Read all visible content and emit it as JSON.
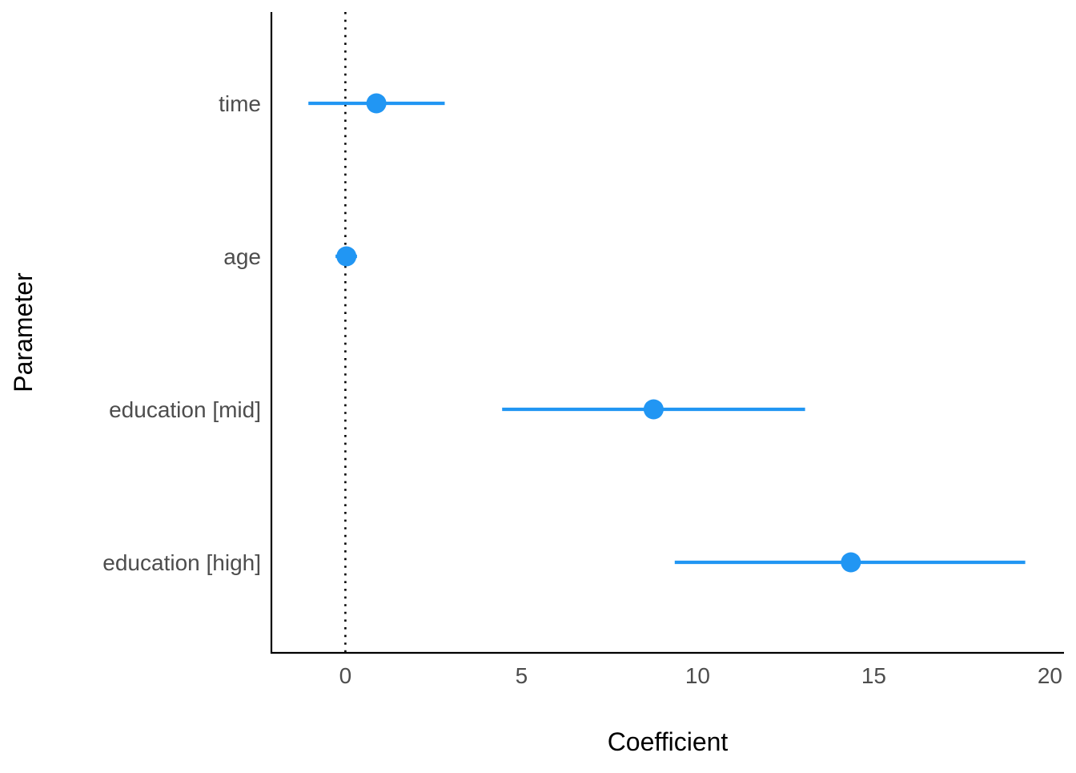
{
  "chart_data": {
    "type": "scatter",
    "subtype": "coefficient-plot",
    "title": "",
    "xlabel": "Coefficient",
    "ylabel": "Parameter",
    "xlim": [
      -2.1,
      20.4
    ],
    "x_ticks": [
      0,
      5,
      10,
      15,
      20
    ],
    "x_tick_labels": [
      "0",
      "5",
      "10",
      "15",
      "20"
    ],
    "reference_line": 0,
    "grid": false,
    "legend": "none",
    "categories": [
      "time",
      "age",
      "education [mid]",
      "education [high]"
    ],
    "estimates": [
      0.88,
      0.03,
      8.75,
      14.35
    ],
    "ci_low": [
      -1.05,
      -0.28,
      4.45,
      9.35
    ],
    "ci_high": [
      2.82,
      0.33,
      13.05,
      19.3
    ],
    "color": "#2196f3"
  }
}
